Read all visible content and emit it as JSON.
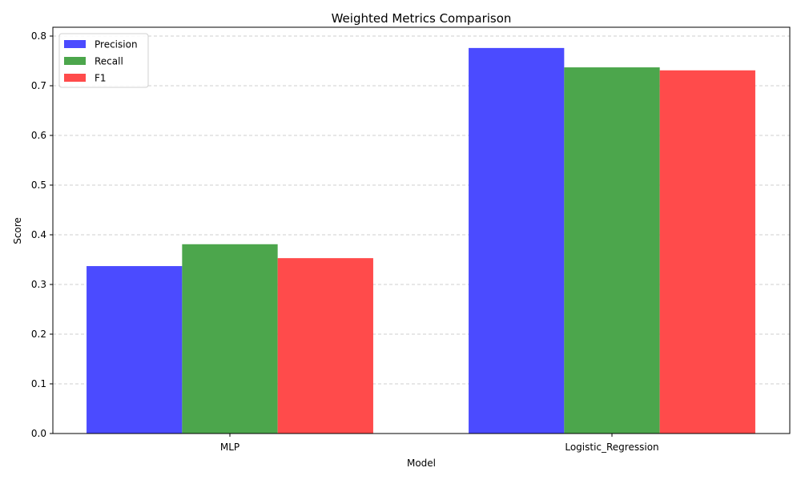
{
  "chart_data": {
    "type": "bar",
    "title": "Weighted Metrics Comparison",
    "xlabel": "Model",
    "ylabel": "Score",
    "categories": [
      "MLP",
      "Logistic_Regression"
    ],
    "series": [
      {
        "name": "Precision",
        "color": "#4b4bff",
        "values": [
          0.337,
          0.776
        ]
      },
      {
        "name": "Recall",
        "color": "#4ca64c",
        "values": [
          0.381,
          0.737
        ]
      },
      {
        "name": "F1",
        "color": "#ff4b4b",
        "values": [
          0.353,
          0.731
        ]
      }
    ],
    "ylim": [
      0,
      0.8
    ],
    "yticks": [
      "0.0",
      "0.1",
      "0.2",
      "0.3",
      "0.4",
      "0.5",
      "0.6",
      "0.7",
      "0.8"
    ],
    "grid": {
      "axis": "y",
      "style": "dashed",
      "color": "#c0c0c0"
    },
    "legend": {
      "position": "top-left"
    }
  }
}
